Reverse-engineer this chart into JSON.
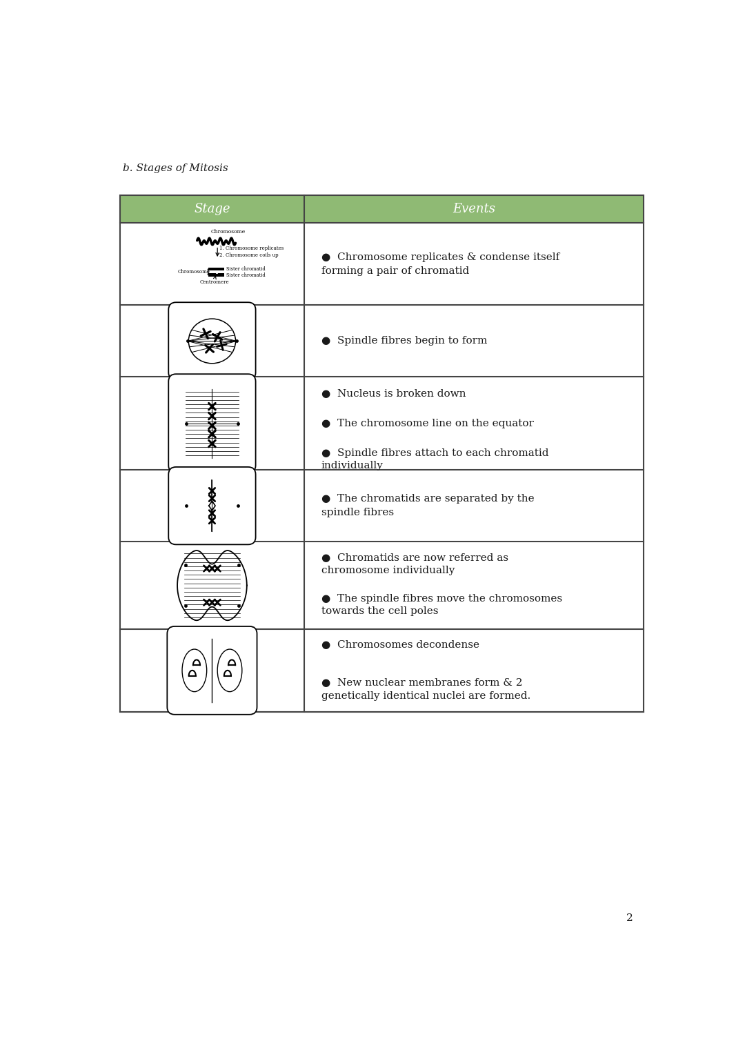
{
  "title": "b. Stages of Mitosis",
  "header_bg": "#8fba74",
  "header_text_color": "#ffffff",
  "col1_header": "Stage",
  "col2_header": "Events",
  "background": "#ffffff",
  "border_color": "#444444",
  "text_color": "#1a1a1a",
  "page_number": "2",
  "rows": [
    {
      "events": [
        "Chromosome replicates & condense itself\nforming a pair of chromatid"
      ]
    },
    {
      "events": [
        "Spindle fibres begin to form"
      ]
    },
    {
      "events": [
        "Nucleus is broken down",
        "The chromosome line on the equator",
        "Spindle fibres attach to each chromatid\nindividually"
      ]
    },
    {
      "events": [
        "The chromatids are separated by the\nspindle fibres"
      ]
    },
    {
      "events": [
        "Chromatids are now referred as\nchromosome individually",
        "The spindle fibres move the chromosomes\ntowards the cell poles"
      ]
    },
    {
      "events": [
        "Chromosomes decondense",
        "New nuclear membranes form & 2\ngenetically identical nuclei are formed."
      ]
    }
  ],
  "title_fontsize": 11,
  "header_fontsize": 13,
  "body_fontsize": 11,
  "title_font": "serif",
  "header_font": "serif",
  "body_font": "serif"
}
